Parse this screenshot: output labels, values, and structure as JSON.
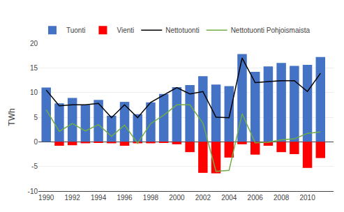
{
  "chart_data": {
    "type": "bar",
    "x": [
      1990,
      1991,
      1992,
      1993,
      1994,
      1995,
      1996,
      1997,
      1998,
      1999,
      2000,
      2001,
      2002,
      2003,
      2004,
      2005,
      2006,
      2007,
      2008,
      2009,
      2010,
      2011
    ],
    "series": [
      {
        "name": "Tuonti",
        "type": "bar",
        "color": "#4472C4",
        "values": [
          11.0,
          7.8,
          8.9,
          7.5,
          8.5,
          5.3,
          8.1,
          5.6,
          8.0,
          9.7,
          11.1,
          11.5,
          13.3,
          11.6,
          11.3,
          17.8,
          14.2,
          15.3,
          16.0,
          15.4,
          15.6,
          17.2
        ]
      },
      {
        "name": "Vienti",
        "type": "bar",
        "color": "#FF0000",
        "values": [
          0.0,
          -0.8,
          -0.7,
          -0.3,
          -0.2,
          -0.3,
          -0.8,
          -0.3,
          -0.3,
          -0.2,
          -0.5,
          -2.1,
          -6.3,
          -6.4,
          -3.2,
          -0.5,
          -2.6,
          -0.8,
          -2.1,
          -2.5,
          -5.3,
          -3.3
        ]
      },
      {
        "name": "Nettotuonti",
        "type": "line",
        "color": "#000000",
        "values": [
          10.5,
          7.3,
          7.5,
          7.5,
          7.8,
          4.9,
          7.5,
          4.9,
          8.0,
          9.5,
          11.0,
          9.7,
          10.2,
          5.0,
          4.9,
          17.0,
          12.0,
          12.2,
          12.4,
          12.4,
          10.2,
          13.9
        ]
      },
      {
        "name": "Nettotuonti Pohjoismaista",
        "type": "line",
        "color": "#70AD47",
        "values": [
          6.5,
          2.1,
          3.7,
          2.2,
          3.5,
          1.1,
          3.4,
          -0.3,
          3.7,
          5.4,
          7.5,
          7.5,
          3.8,
          -6.0,
          -5.8,
          5.7,
          -0.2,
          -0.1,
          0.4,
          0.6,
          1.7,
          2.0
        ]
      }
    ],
    "xlim": [
      1989.4,
      2012.0
    ],
    "xticks": [
      1990,
      1992,
      1994,
      1996,
      1998,
      2000,
      2002,
      2004,
      2006,
      2008,
      2010
    ],
    "ylim": [
      -10,
      20
    ],
    "yticks": [
      -10,
      -5,
      0,
      5,
      10,
      15,
      20
    ],
    "ylabel": "TWh",
    "grid": true,
    "legend": "upper left"
  }
}
